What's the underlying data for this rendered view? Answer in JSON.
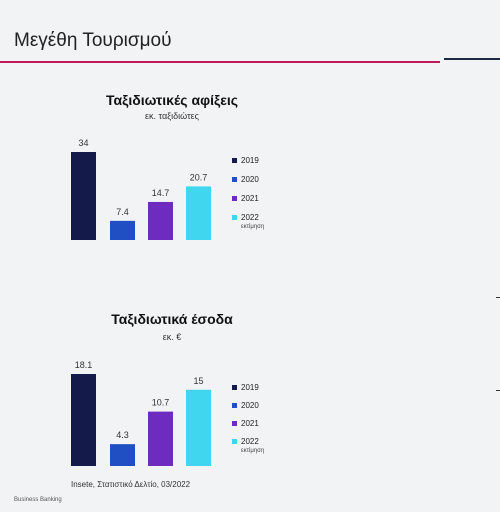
{
  "slide": {
    "title": "Μεγέθη Τουρισμού",
    "source": "Insete, Στατιστικό Δελτίο, 03/2022",
    "footer": "Business Banking"
  },
  "chart_data": [
    {
      "type": "bar",
      "title": "Ταξιδιωτικές αφίξεις",
      "subtitle": "εκ. ταξιδιώτες",
      "categories": [
        "2019",
        "2020",
        "2021",
        "2022"
      ],
      "values": [
        34,
        7.4,
        14.7,
        20.7
      ],
      "value_labels": [
        "34",
        "7.4",
        "14.7",
        "20.7"
      ],
      "legend_notes": [
        "",
        "",
        "",
        "εκτίμηση"
      ],
      "colors": [
        "#141a4a",
        "#1f4fc2",
        "#6d2bc0",
        "#40d6f0"
      ],
      "ylim": [
        0,
        34
      ],
      "legend": "right",
      "grid": false
    },
    {
      "type": "bar",
      "title": "Ταξιδιωτικά έσοδα",
      "subtitle": "εκ. €",
      "categories": [
        "2019",
        "2020",
        "2021",
        "2022"
      ],
      "values": [
        18.1,
        4.3,
        10.7,
        15
      ],
      "value_labels": [
        "18.1",
        "4.3",
        "10.7",
        "15"
      ],
      "legend_notes": [
        "",
        "",
        "",
        "εκτίμηση"
      ],
      "colors": [
        "#141a4a",
        "#1f4fc2",
        "#6d2bc0",
        "#40d6f0"
      ],
      "ylim": [
        0,
        18.1
      ],
      "legend": "right",
      "grid": false
    }
  ]
}
